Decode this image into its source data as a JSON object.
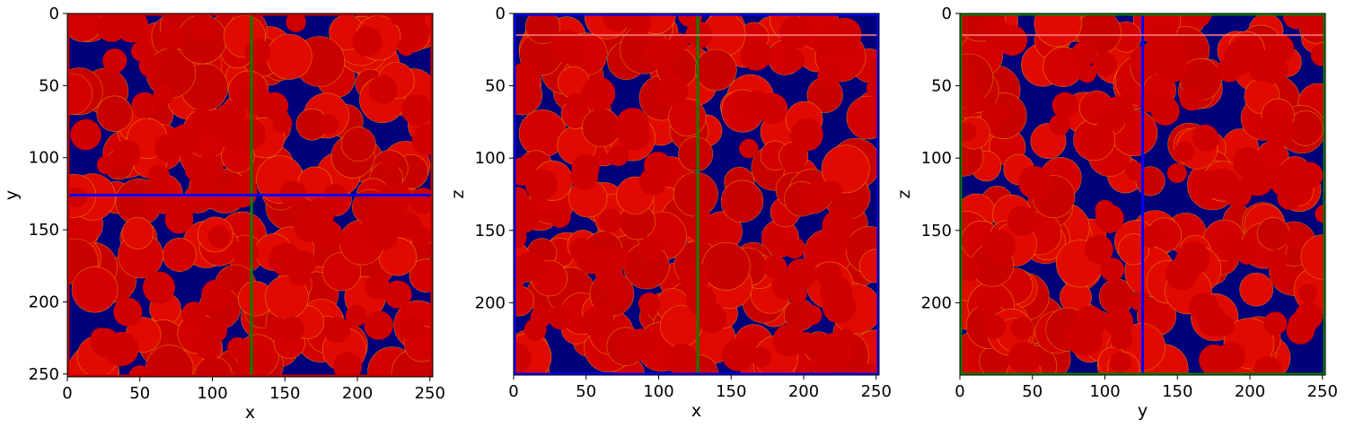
{
  "chart_data": [
    {
      "type": "heatmap",
      "title": "",
      "xlabel": "x",
      "ylabel": "y",
      "xlim": [
        0,
        252
      ],
      "ylim": [
        252,
        0
      ],
      "xticks": [
        0,
        50,
        100,
        150,
        200,
        250
      ],
      "yticks": [
        0,
        50,
        100,
        150,
        200,
        250
      ],
      "frame_color": "#c00000",
      "guides": [
        {
          "orientation": "vertical",
          "value": 127,
          "color": "#008000"
        },
        {
          "orientation": "horizontal",
          "value": 126,
          "color": "#0000ff"
        }
      ],
      "colormap": "jet",
      "seed": 11
    },
    {
      "type": "heatmap",
      "title": "",
      "xlabel": "x",
      "ylabel": "z",
      "xlim": [
        0,
        252
      ],
      "ylim": [
        250,
        0
      ],
      "xticks": [
        0,
        50,
        100,
        150,
        200,
        250
      ],
      "yticks": [
        0,
        50,
        100,
        150,
        200
      ],
      "frame_color": "#0000ff",
      "guides": [
        {
          "orientation": "vertical",
          "value": 127,
          "color": "#008000"
        },
        {
          "orientation": "horizontal",
          "value": 15,
          "color": "#ff8080"
        }
      ],
      "colormap": "jet",
      "seed": 23
    },
    {
      "type": "heatmap",
      "title": "",
      "xlabel": "y",
      "ylabel": "z",
      "xlim": [
        0,
        252
      ],
      "ylim": [
        250,
        0
      ],
      "xticks": [
        0,
        50,
        100,
        150,
        200,
        250
      ],
      "yticks": [
        0,
        50,
        100,
        150,
        200
      ],
      "frame_color": "#008000",
      "guides": [
        {
          "orientation": "vertical",
          "value": 126,
          "color": "#0000ff"
        },
        {
          "orientation": "horizontal",
          "value": 15,
          "color": "#ff8080"
        }
      ],
      "colormap": "jet",
      "seed": 37
    }
  ]
}
